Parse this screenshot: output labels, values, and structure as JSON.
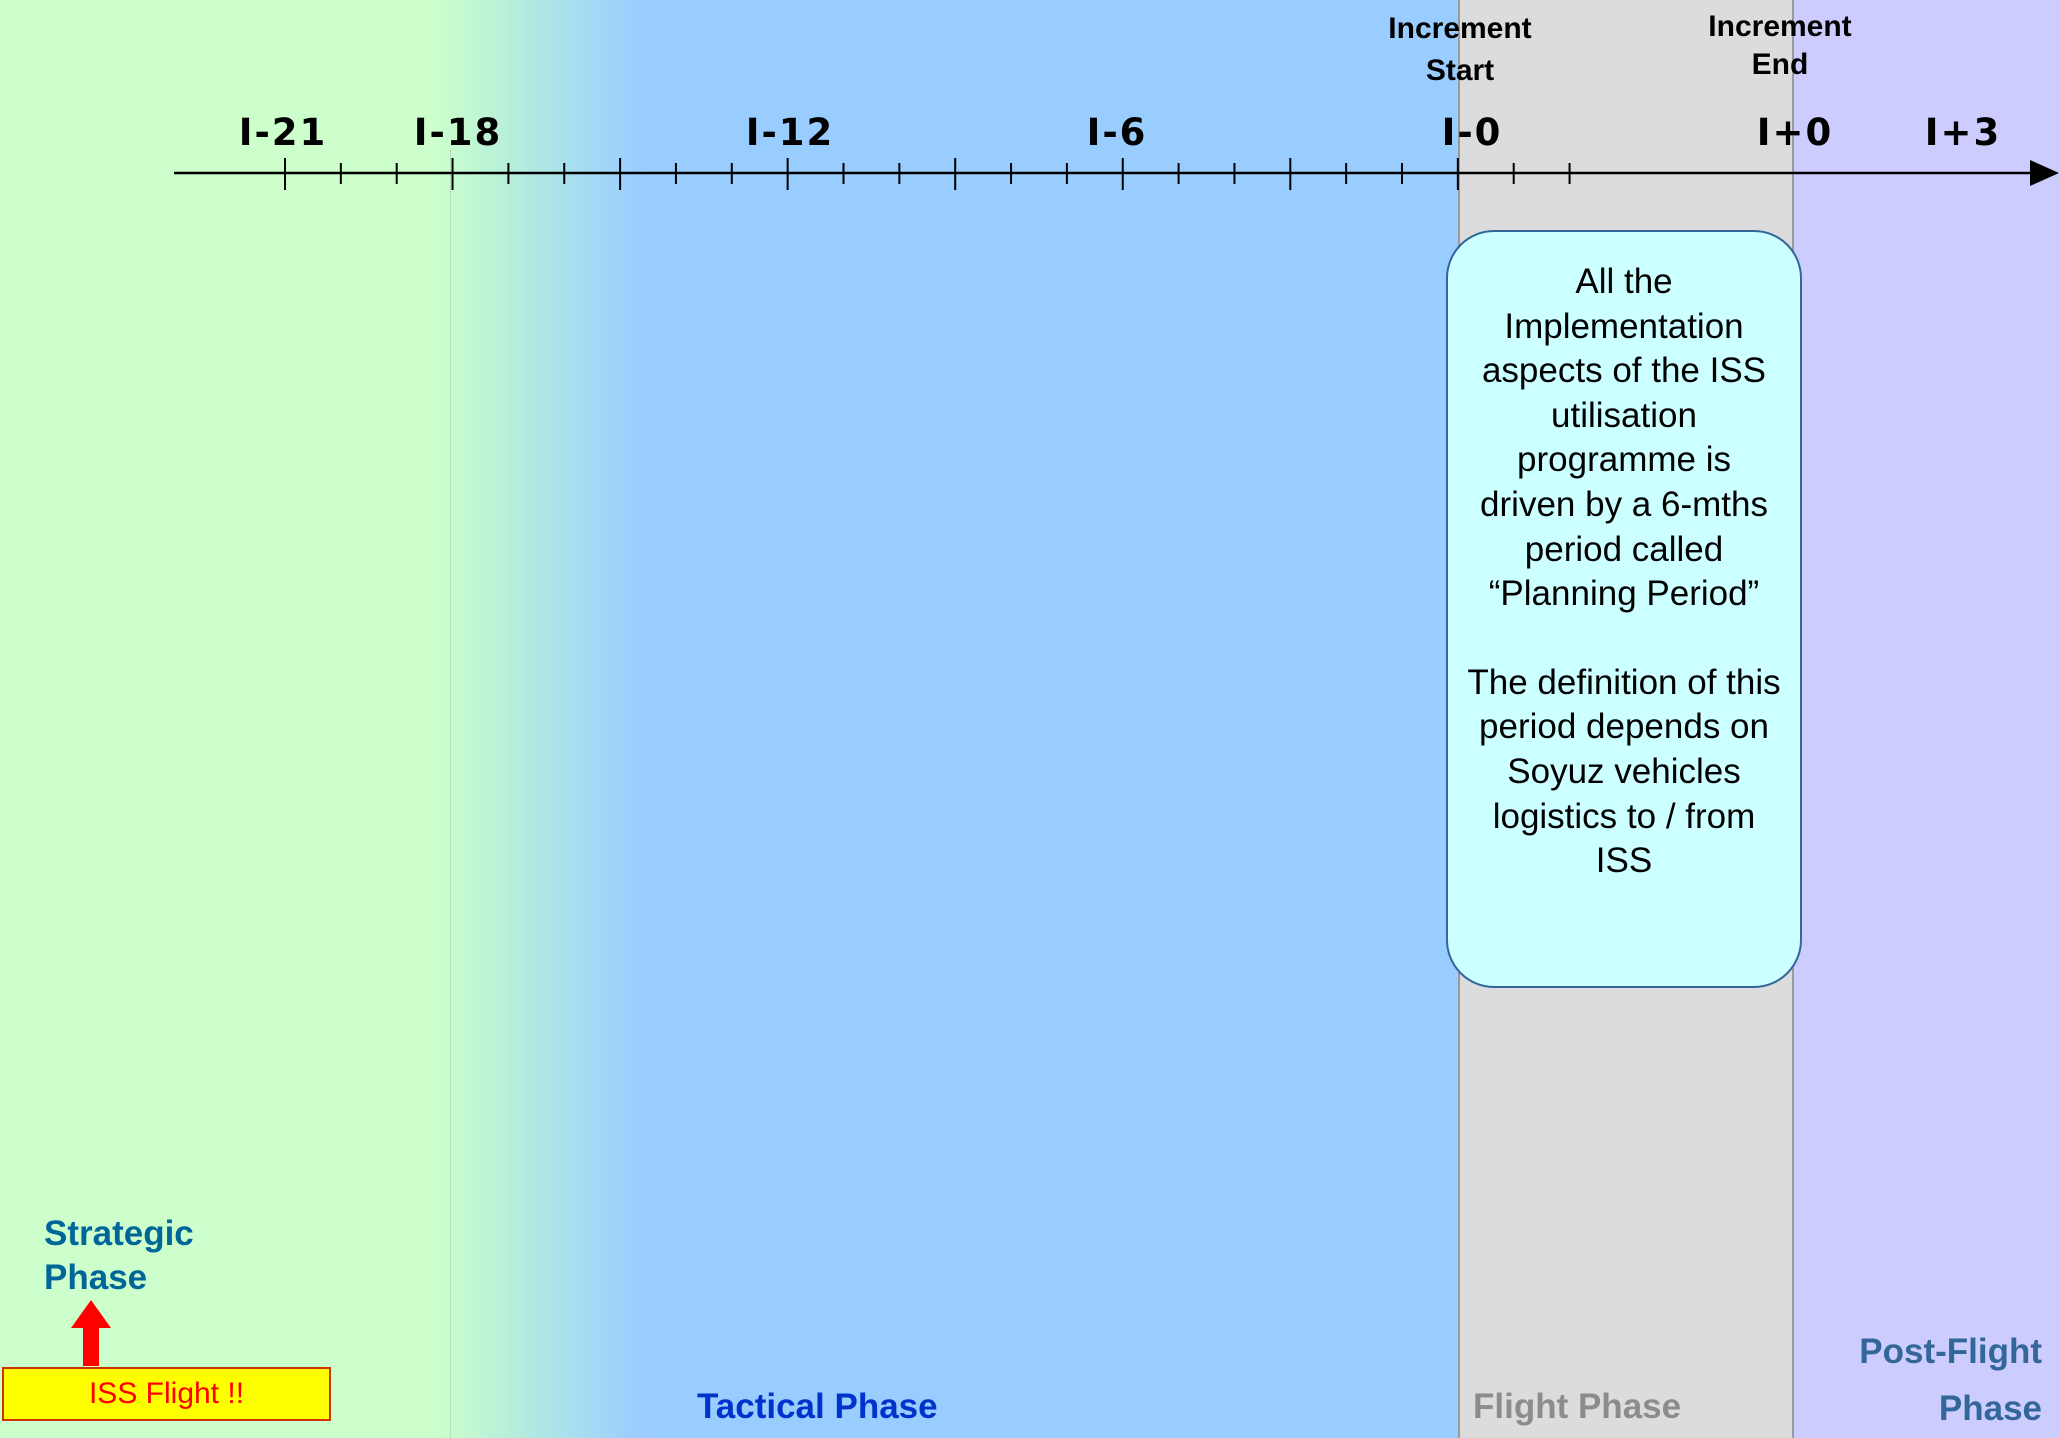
{
  "axis": {
    "tick_labels": [
      "I-21",
      "I-18",
      "I-12",
      "I-6",
      "I-0",
      "I+0",
      "I+3"
    ],
    "increment_start": [
      "Increment",
      "Start"
    ],
    "increment_end": [
      "Increment",
      "End"
    ]
  },
  "info_box": {
    "paragraph1": "All the Implementation aspects of the ISS utilisation programme is driven by a 6-mths period called “Planning Period”",
    "paragraph2": "The definition of this period depends on Soyuz vehicles logistics to / from ISS"
  },
  "phases": {
    "strategic": "Strategic Phase",
    "tactical": "Tactical Phase",
    "flight": "Flight Phase",
    "post_flight": "Post-Flight Phase"
  },
  "iss_flight_label": "ISS Flight !!",
  "colors": {
    "strategic_bg": "#ccffcc",
    "tactical_bg": "#99ccff",
    "flight_bg": "#dcdcdc",
    "post_flight_bg": "#ccccff",
    "info_box_bg": "#ccffff",
    "iss_flight_bg": "#ffff00",
    "arrow": "#ff0000"
  }
}
